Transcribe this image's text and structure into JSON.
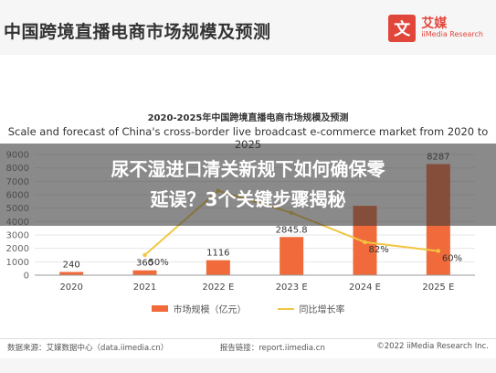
{
  "header": {
    "title": "中国跨境直播电商市场规模及预测",
    "brand_name": "艾媒",
    "brand_en": "iiMedia Research",
    "brand_icon": "文"
  },
  "overlay": {
    "headline_line1": "尿不湿进口清关新规下如何确保零",
    "headline_line2": "延误？3个关键步骤揭秘"
  },
  "footer": {
    "source": "数据来源：艾媒数据中心（data.iimedia.cn）",
    "report": "报告链接：report.iimedia.cn",
    "copyright": "©2022 iiMedia Research Inc."
  },
  "chart_data": {
    "type": "bar",
    "title": "2020-2025年中国跨境直播电商市场规模及预测",
    "subtitle": "Scale and forecast of China's cross-border live broadcast e-commerce market from 2020 to 2025",
    "categories": [
      "2020",
      "2021",
      "2022 E",
      "2023 E",
      "2024 E",
      "2025 E"
    ],
    "ylim": [
      0,
      9000
    ],
    "yticks": [
      0,
      1000,
      2000,
      3000,
      4000,
      5000,
      6000,
      7000,
      8000,
      9000
    ],
    "series": [
      {
        "name": "市场规模（亿元）",
        "type": "bar",
        "color": "#f06a3b",
        "values": [
          240,
          360,
          1116,
          2845.8,
          5170,
          8287
        ],
        "labels": [
          "240",
          "360",
          "1116",
          "2845.8",
          "",
          "8287"
        ]
      },
      {
        "name": "同比增长率",
        "type": "line",
        "color": "#f2c541",
        "values": [
          null,
          50,
          210,
          155,
          82,
          60
        ],
        "labels": [
          "",
          "50%",
          "",
          "",
          "82%",
          "60%"
        ]
      }
    ],
    "grid": true,
    "legend": "bottom"
  }
}
